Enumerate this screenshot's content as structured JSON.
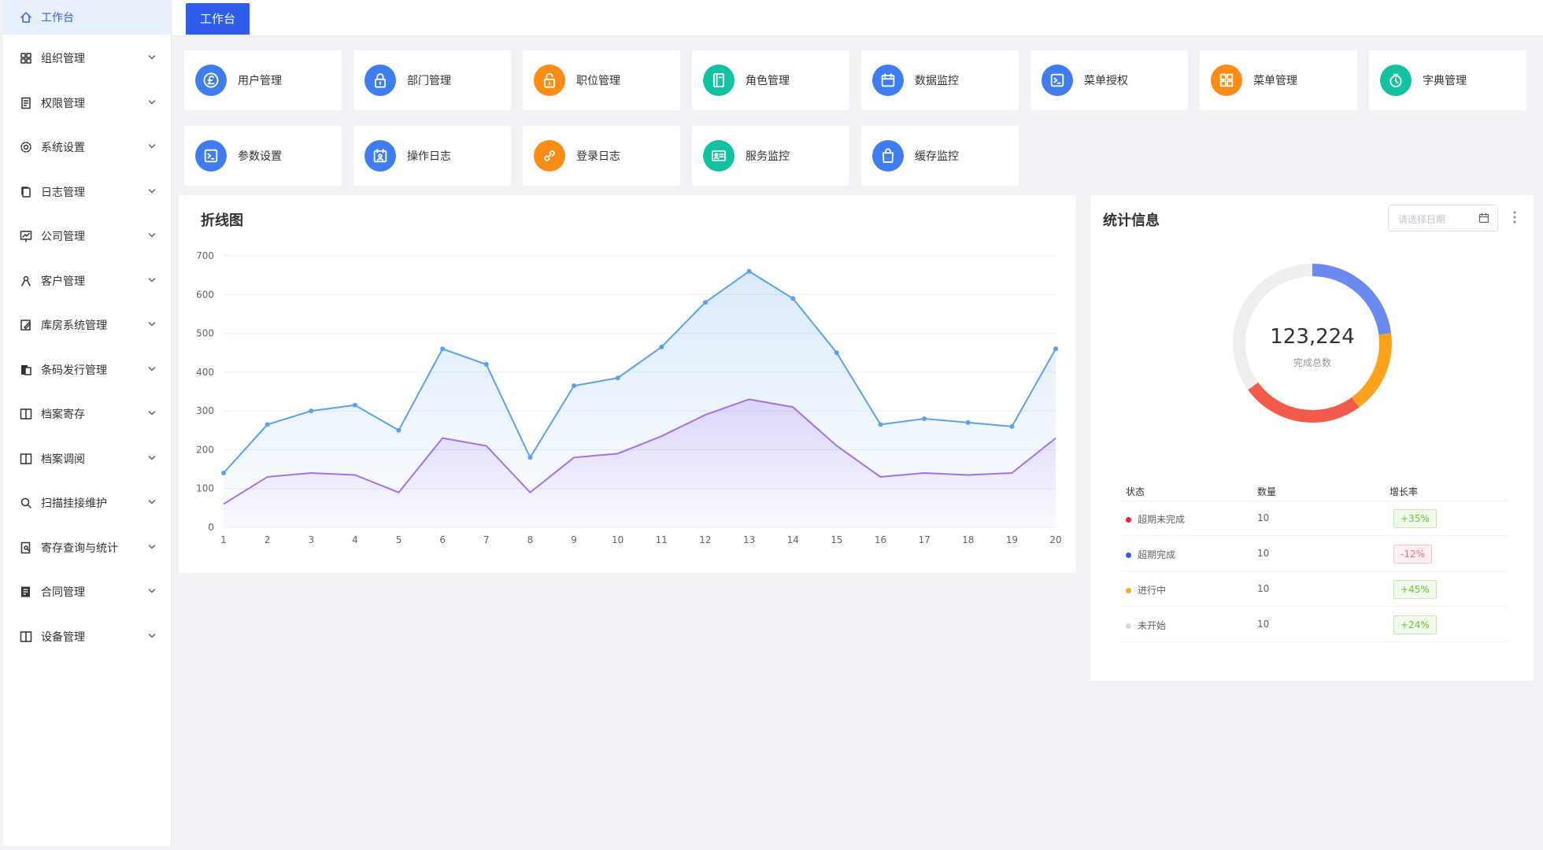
{
  "sidebar": {
    "items": [
      {
        "label": "工作台",
        "icon": "home-icon"
      },
      {
        "label": "组织管理",
        "icon": "grid-icon"
      },
      {
        "label": "权限管理",
        "icon": "document-icon"
      },
      {
        "label": "系统设置",
        "icon": "gear-icon"
      },
      {
        "label": "日志管理",
        "icon": "copy-icon"
      },
      {
        "label": "公司管理",
        "icon": "chart-board-icon"
      },
      {
        "label": "客户管理",
        "icon": "user-icon"
      },
      {
        "label": "库房系统管理",
        "icon": "edit-icon"
      },
      {
        "label": "条码发行管理",
        "icon": "files-icon"
      },
      {
        "label": "档案寄存",
        "icon": "columns-icon"
      },
      {
        "label": "档案调阅",
        "icon": "columns-icon"
      },
      {
        "label": "扫描挂接维护",
        "icon": "search-icon"
      },
      {
        "label": "寄存查询与统计",
        "icon": "document-search-icon"
      },
      {
        "label": "合同管理",
        "icon": "contract-icon"
      },
      {
        "label": "设备管理",
        "icon": "columns-icon"
      }
    ]
  },
  "tabs": [
    {
      "label": "工作台"
    }
  ],
  "quick_links": [
    {
      "label": "用户管理",
      "icon": "pound-icon",
      "color": "#3f7cf0"
    },
    {
      "label": "部门管理",
      "icon": "lock-icon",
      "color": "#3f7cf0"
    },
    {
      "label": "职位管理",
      "icon": "unlock-icon",
      "color": "#fa8c16"
    },
    {
      "label": "角色管理",
      "icon": "notebook-icon",
      "color": "#13c2a3"
    },
    {
      "label": "数据监控",
      "icon": "calendar-icon",
      "color": "#3f7cf0"
    },
    {
      "label": "菜单授权",
      "icon": "terminal-icon",
      "color": "#3f7cf0"
    },
    {
      "label": "菜单管理",
      "icon": "grid-icon",
      "color": "#fa8c16"
    },
    {
      "label": "字典管理",
      "icon": "stopwatch-icon",
      "color": "#13c2a3"
    },
    {
      "label": "参数设置",
      "icon": "terminal-icon",
      "color": "#3f7cf0"
    },
    {
      "label": "操作日志",
      "icon": "calendar-user-icon",
      "color": "#3f7cf0"
    },
    {
      "label": "登录日志",
      "icon": "link-icon",
      "color": "#fa8c16"
    },
    {
      "label": "服务监控",
      "icon": "id-card-icon",
      "color": "#13c2a3"
    },
    {
      "label": "缓存监控",
      "icon": "bag-icon",
      "color": "#3f7cf0"
    }
  ],
  "line_panel": {
    "title": "折线图"
  },
  "chart_data": {
    "type": "area",
    "categories": [
      "1",
      "2",
      "3",
      "4",
      "5",
      "6",
      "7",
      "8",
      "9",
      "10",
      "11",
      "12",
      "13",
      "14",
      "15",
      "16",
      "17",
      "18",
      "19",
      "20"
    ],
    "series": [
      {
        "values": [
          140,
          265,
          300,
          315,
          250,
          460,
          420,
          180,
          365,
          385,
          465,
          580,
          660,
          590,
          450,
          265,
          280,
          270,
          260,
          460
        ],
        "color": "#5aa0f0"
      },
      {
        "values": [
          60,
          130,
          140,
          135,
          90,
          230,
          210,
          90,
          180,
          190,
          235,
          290,
          330,
          310,
          210,
          130,
          140,
          135,
          140,
          230
        ],
        "color": "#a56cf0"
      }
    ],
    "ylim": [
      0,
      700
    ],
    "yticks": [
      "0",
      "100",
      "200",
      "300",
      "400",
      "500",
      "600",
      "700"
    ],
    "grid": true
  },
  "stats_panel": {
    "title": "统计信息",
    "date_placeholder": "请选择日期",
    "total": "123,224",
    "total_label": "完成总数",
    "headers": [
      "状态",
      "数量",
      "增长率"
    ],
    "rows": [
      {
        "status": "超期未完成",
        "count": "10",
        "rate": "+35%",
        "trend": "up",
        "dot_color": "#f5222d"
      },
      {
        "status": "超期完成",
        "count": "10",
        "rate": "-12%",
        "trend": "down",
        "dot_color": "#2f5ce8"
      },
      {
        "status": "进行中",
        "count": "10",
        "rate": "+45%",
        "trend": "up",
        "dot_color": "#faad14"
      },
      {
        "status": "未开始",
        "count": "10",
        "rate": "+24%",
        "trend": "up",
        "dot_color": "#d9d9d9"
      }
    ],
    "donut": [
      {
        "value": 0.23,
        "color": "#6b8af0"
      },
      {
        "value": 0.17,
        "color": "#faa21c"
      },
      {
        "value": 0.25,
        "color": "#f35a4b"
      },
      {
        "value": 0.35,
        "color": "#eeeeee"
      }
    ]
  }
}
